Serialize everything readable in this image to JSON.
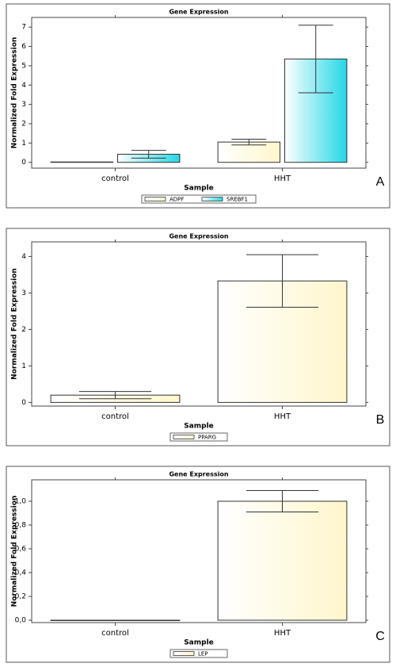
{
  "chart_data": [
    {
      "type": "bar",
      "title": "Gene Expression",
      "x_label": "Sample",
      "y_label": "Normalized Fold Expression",
      "panel_label": "A",
      "categories": [
        "control",
        "HHT"
      ],
      "series": [
        {
          "name": "ADPF",
          "color": "#fff6cc",
          "values": [
            0.02,
            1.05
          ],
          "errors": [
            0,
            0.15
          ]
        },
        {
          "name": "SREBF1",
          "color": "#22d8e6",
          "values": [
            0.42,
            5.35
          ],
          "errors": [
            0.2,
            1.75
          ]
        }
      ],
      "ylim": [
        -0.3,
        7.5
      ],
      "yticks": [
        0,
        1,
        2,
        3,
        4,
        5,
        6,
        7
      ],
      "grid": false
    },
    {
      "type": "bar",
      "title": "Gene Expression",
      "x_label": "Sample",
      "y_label": "Normalized Fold Expression",
      "panel_label": "B",
      "categories": [
        "control",
        "HHT"
      ],
      "series": [
        {
          "name": "PPARG",
          "color": "#fff6cc",
          "values": [
            0.2,
            3.33
          ],
          "errors": [
            0.1,
            0.72
          ]
        }
      ],
      "ylim": [
        -0.1,
        4.4
      ],
      "yticks": [
        0,
        1,
        2,
        3,
        4
      ],
      "grid": false
    },
    {
      "type": "bar",
      "title": "Gene Expression",
      "x_label": "Sample",
      "y_label": "Normalized Fold Expression",
      "panel_label": "C",
      "categories": [
        "control",
        "HHT"
      ],
      "series": [
        {
          "name": "LEP",
          "color": "#fff6cc",
          "values": [
            0,
            1.0
          ],
          "errors": [
            0,
            0.09
          ]
        }
      ],
      "ylim": [
        -0.02,
        1.18
      ],
      "yticks": [
        {
          "value": 0,
          "label": "0,0"
        },
        {
          "value": 0.2,
          "label": "0,2"
        },
        {
          "value": 0.4,
          "label": "0,4"
        },
        {
          "value": 0.6,
          "label": "0,6"
        },
        {
          "value": 0.8,
          "label": "0,8"
        },
        {
          "value": 1.0,
          "label": "1,0"
        }
      ],
      "grid": false
    }
  ]
}
